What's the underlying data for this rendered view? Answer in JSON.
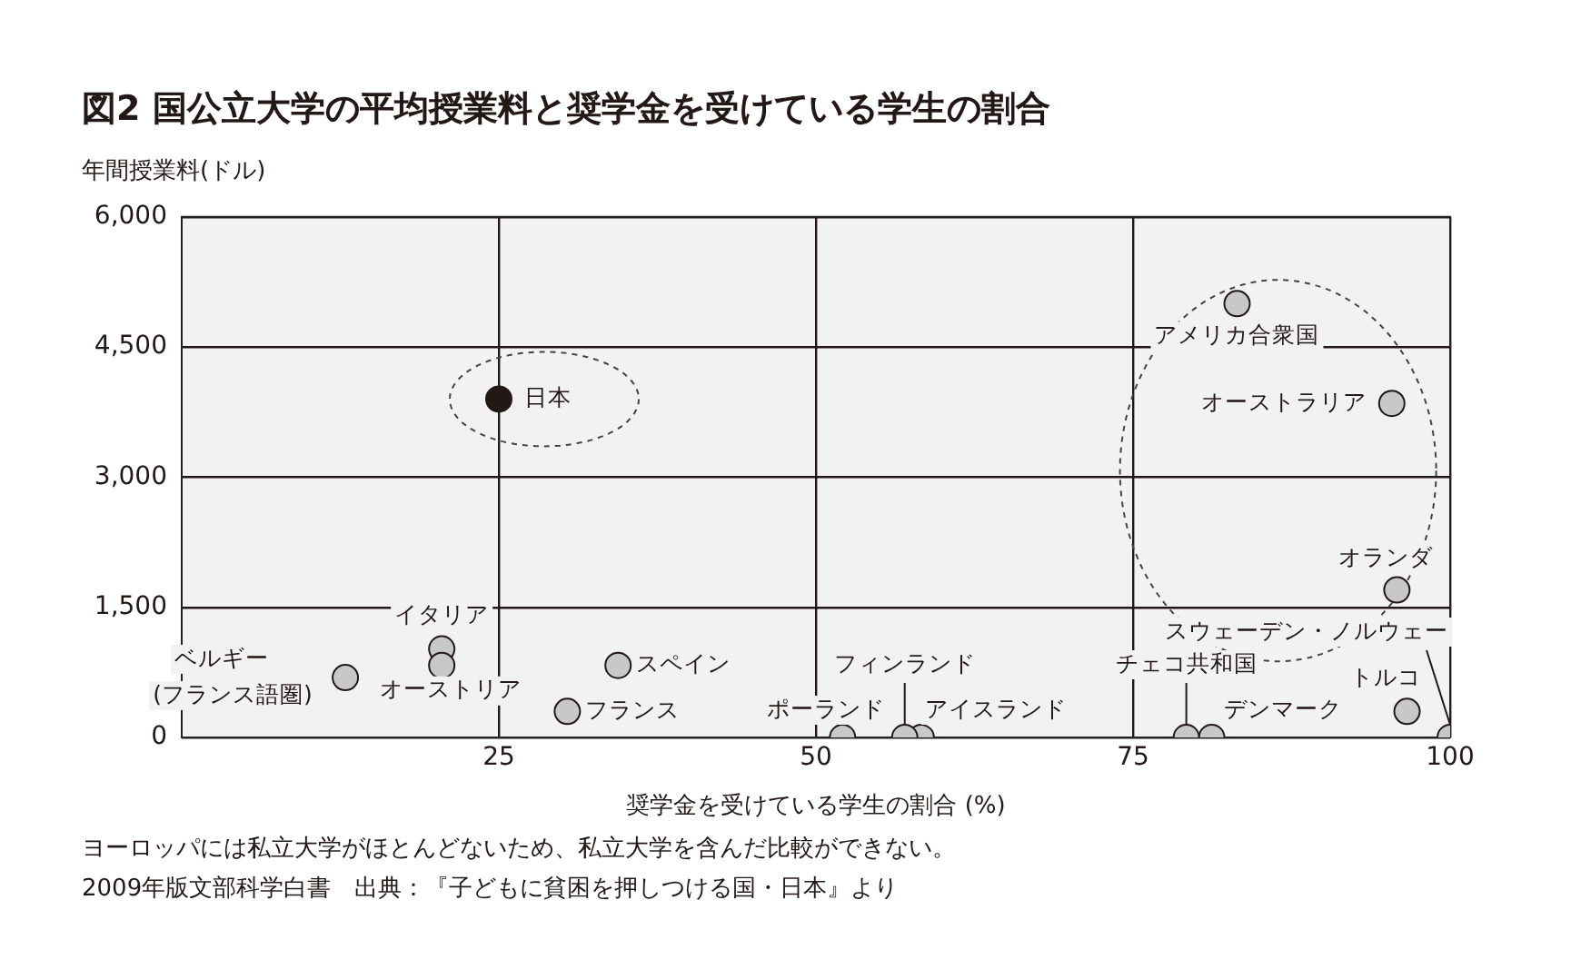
{
  "chart_data": {
    "type": "scatter",
    "title": "図2 国公立大学の平均授業料と奨学金を受けている学生の割合",
    "xlabel": "奨学金を受けている学生の割合 (%)",
    "ylabel": "年間授業料(ドル)",
    "x": [
      25,
      83.2,
      95.4,
      95.8,
      96.6,
      100,
      81.2,
      79.2,
      58.3,
      57.0,
      52.1,
      34.4,
      30.4,
      20.5,
      20.5,
      12.9
    ],
    "values": [
      3900,
      5000,
      3850,
      1700,
      300,
      0,
      0,
      0,
      0,
      0,
      0,
      830,
      300,
      1020,
      830,
      690
    ],
    "colors": [
      "#231815",
      "#c8c8c8",
      "#c8c8c8",
      "#c8c8c8",
      "#c8c8c8",
      "#c8c8c8",
      "#c8c8c8",
      "#c8c8c8",
      "#c8c8c8",
      "#c8c8c8",
      "#c8c8c8",
      "#c8c8c8",
      "#c8c8c8",
      "#c8c8c8",
      "#c8c8c8",
      "#c8c8c8"
    ],
    "marker": "circle",
    "xlim": [
      0,
      100
    ],
    "xticks": [
      25,
      50,
      75,
      100
    ],
    "ylim": [
      0,
      6000
    ],
    "yticks": [
      {
        "value": 0,
        "label": "0"
      },
      {
        "value": 1500,
        "label": "1,500"
      },
      {
        "value": 3000,
        "label": "3,000"
      },
      {
        "value": 4500,
        "label": "4,500"
      },
      {
        "value": 6000,
        "label": "6,000"
      }
    ],
    "grid": true,
    "annotations": [
      {
        "text": "日本",
        "x": 25,
        "y": 3900
      },
      {
        "text": "アメリカ合衆国",
        "x": 83.2,
        "y": 5000
      },
      {
        "text": "オーストラリア",
        "x": 95.4,
        "y": 3850
      },
      {
        "text": "オランダ",
        "x": 95.8,
        "y": 1700
      },
      {
        "text": "トルコ",
        "x": 96.6,
        "y": 300
      },
      {
        "text": "スウェーデン・ノルウェー",
        "x": 100,
        "y": 0
      },
      {
        "text": "デンマーク",
        "x": 81.2,
        "y": 0
      },
      {
        "text": "チェコ共和国",
        "x": 79.2,
        "y": 0
      },
      {
        "text": "アイスランド",
        "x": 58.3,
        "y": 0
      },
      {
        "text": "フィンランド",
        "x": 57.0,
        "y": 0
      },
      {
        "text": "ポーランド",
        "x": 52.1,
        "y": 0
      },
      {
        "text": "スペイン",
        "x": 34.4,
        "y": 830
      },
      {
        "text": "フランス",
        "x": 30.4,
        "y": 300
      },
      {
        "text": "イタリア",
        "x": 20.5,
        "y": 1020
      },
      {
        "text": "オーストリア",
        "x": 20.5,
        "y": 830
      },
      {
        "text": "ベルギー\n(フランス語圏)",
        "x": 12.9,
        "y": 690
      },
      "ヨーロッパには私立大学がほとんどないため、私立大学を含んだ比較ができない。",
      "2009年版文部科学白書　出典：『子どもに貧困を押しつける国・日本』より"
    ]
  }
}
